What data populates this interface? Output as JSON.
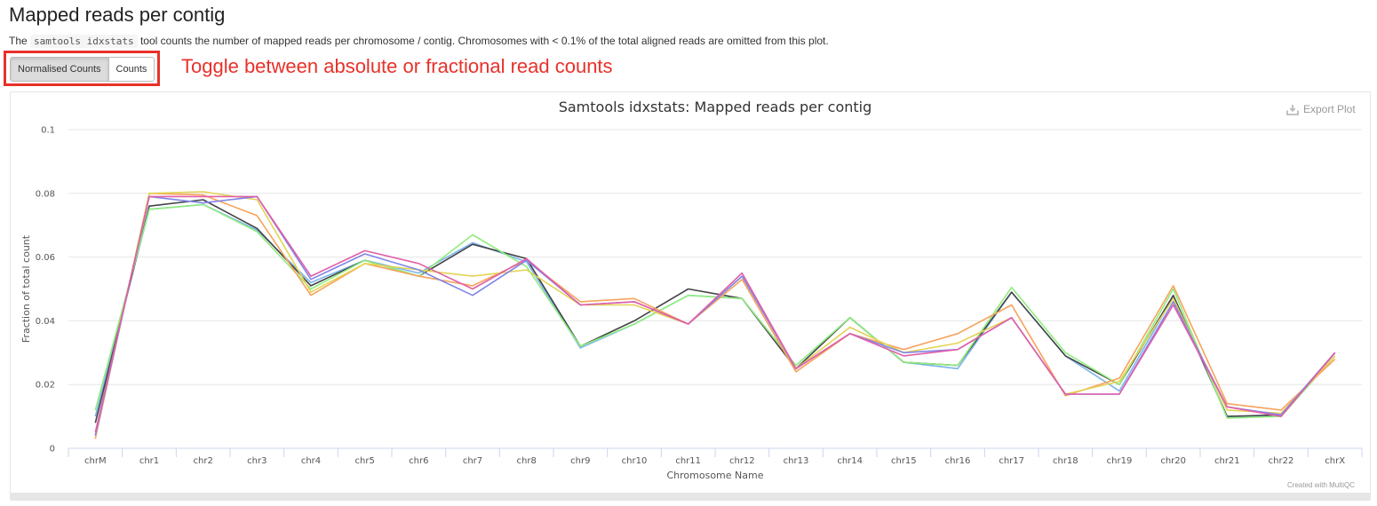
{
  "page": {
    "title": "Mapped reads per contig",
    "description_prefix": "The",
    "description_code": "samtools idxstats",
    "description_suffix": "tool counts the number of mapped reads per chromosome / contig. Chromosomes with < 0.1% of the total aligned reads are omitted from this plot."
  },
  "toggle": {
    "buttons": [
      {
        "label": "Normalised Counts",
        "active": true
      },
      {
        "label": "Counts",
        "active": false
      }
    ]
  },
  "annotation": {
    "text": "Toggle between absolute or fractional read counts",
    "color": "#e8312a"
  },
  "plot": {
    "export_label": "Export Plot",
    "export_icon": "download-icon",
    "credit": "Created with MultiQC"
  },
  "chart_data": {
    "type": "line",
    "title": "Samtools idxstats: Mapped reads per contig",
    "xlabel": "Chromosome Name",
    "ylabel": "Fraction of total count",
    "ylim": [
      0,
      0.1
    ],
    "yticks": [
      0,
      0.02,
      0.04,
      0.06,
      0.08,
      0.1
    ],
    "ytick_labels": [
      "0",
      "0.02",
      "0.04",
      "0.06",
      "0.08",
      "0.1"
    ],
    "grid": true,
    "legend": "none",
    "categories": [
      "chrM",
      "chr1",
      "chr2",
      "chr3",
      "chr4",
      "chr5",
      "chr6",
      "chr7",
      "chr8",
      "chr9",
      "chr10",
      "chr11",
      "chr12",
      "chr13",
      "chr14",
      "chr15",
      "chr16",
      "chr17",
      "chr18",
      "chr19",
      "chr20",
      "chr21",
      "chr22",
      "chrX"
    ],
    "series": [
      {
        "color": "#7cb5ec",
        "values": [
          0.01,
          0.075,
          0.0765,
          0.0685,
          0.052,
          0.059,
          0.055,
          0.0645,
          0.0585,
          0.0315,
          0.039,
          0.048,
          0.047,
          0.026,
          0.041,
          0.027,
          0.025,
          0.049,
          0.029,
          0.018,
          0.0475,
          0.01,
          0.01,
          0.03
        ]
      },
      {
        "color": "#434348",
        "values": [
          0.008,
          0.076,
          0.078,
          0.069,
          0.051,
          0.059,
          0.054,
          0.064,
          0.0595,
          0.032,
          0.04,
          0.05,
          0.047,
          0.025,
          0.041,
          0.027,
          0.026,
          0.049,
          0.029,
          0.02,
          0.048,
          0.01,
          0.0105,
          0.03
        ]
      },
      {
        "color": "#90ed7d",
        "values": [
          0.012,
          0.075,
          0.0765,
          0.068,
          0.05,
          0.059,
          0.054,
          0.067,
          0.057,
          0.032,
          0.039,
          0.048,
          0.047,
          0.026,
          0.041,
          0.027,
          0.026,
          0.0505,
          0.03,
          0.02,
          0.05,
          0.0095,
          0.01,
          0.029
        ]
      },
      {
        "color": "#f7a35c",
        "values": [
          0.003,
          0.08,
          0.0795,
          0.073,
          0.048,
          0.058,
          0.054,
          0.051,
          0.059,
          0.046,
          0.047,
          0.039,
          0.053,
          0.024,
          0.036,
          0.031,
          0.036,
          0.045,
          0.0165,
          0.022,
          0.051,
          0.014,
          0.012,
          0.028
        ]
      },
      {
        "color": "#e4d354",
        "values": [
          0.004,
          0.08,
          0.0805,
          0.078,
          0.049,
          0.058,
          0.056,
          0.054,
          0.056,
          0.045,
          0.045,
          0.039,
          0.054,
          0.025,
          0.038,
          0.03,
          0.033,
          0.041,
          0.017,
          0.021,
          0.047,
          0.012,
          0.011,
          0.029
        ]
      },
      {
        "color": "#8085e9",
        "values": [
          0.004,
          0.079,
          0.077,
          0.079,
          0.053,
          0.061,
          0.056,
          0.048,
          0.059,
          0.045,
          0.046,
          0.039,
          0.054,
          0.025,
          0.036,
          0.03,
          0.031,
          0.041,
          0.017,
          0.017,
          0.046,
          0.013,
          0.0105,
          0.03
        ]
      },
      {
        "color": "#e15fa8",
        "values": [
          0.005,
          0.079,
          0.079,
          0.079,
          0.054,
          0.062,
          0.058,
          0.05,
          0.0595,
          0.045,
          0.046,
          0.039,
          0.055,
          0.025,
          0.036,
          0.029,
          0.031,
          0.041,
          0.017,
          0.017,
          0.045,
          0.013,
          0.01,
          0.03
        ]
      }
    ]
  }
}
